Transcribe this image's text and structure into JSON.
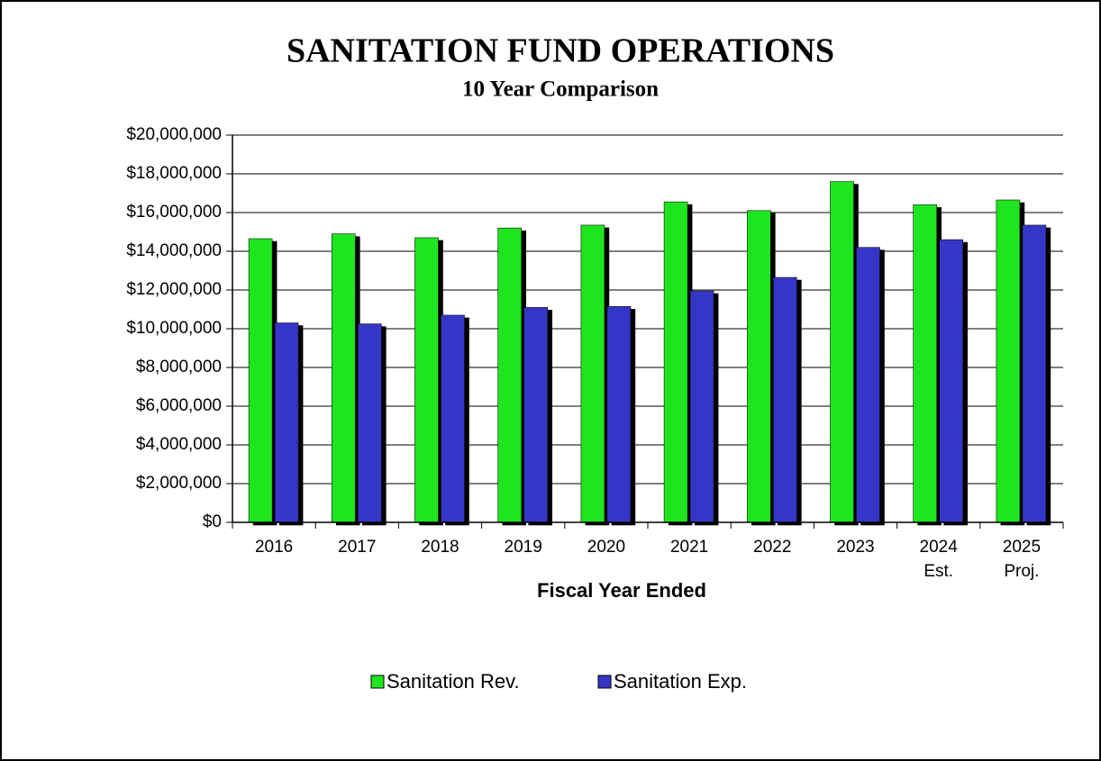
{
  "chart_data": {
    "type": "bar",
    "title": "SANITATION FUND OPERATIONS",
    "subtitle": "10 Year Comparison",
    "x_label": "Fiscal Year Ended",
    "categories": [
      "2016",
      "2017",
      "2018",
      "2019",
      "2020",
      "2021",
      "2022",
      "2023",
      "2024\nEst.",
      "2025\nProj."
    ],
    "series": [
      {
        "name": "Sanitation Rev.",
        "color": "#1ee61e",
        "values": [
          14650000,
          14900000,
          14700000,
          15200000,
          15350000,
          16550000,
          16100000,
          17600000,
          16400000,
          16650000
        ]
      },
      {
        "name": "Sanitation Exp.",
        "color": "#3535c8",
        "values": [
          10300000,
          10250000,
          10700000,
          11100000,
          11150000,
          11950000,
          12650000,
          14200000,
          14600000,
          15350000
        ]
      }
    ],
    "ylim": [
      0,
      20000000
    ],
    "yticks": [
      {
        "value": 0,
        "label": "$0"
      },
      {
        "value": 2000000,
        "label": "$2,000,000"
      },
      {
        "value": 4000000,
        "label": "$4,000,000"
      },
      {
        "value": 6000000,
        "label": "$6,000,000"
      },
      {
        "value": 8000000,
        "label": "$8,000,000"
      },
      {
        "value": 10000000,
        "label": "$10,000,000"
      },
      {
        "value": 12000000,
        "label": "$12,000,000"
      },
      {
        "value": 14000000,
        "label": "$14,000,000"
      },
      {
        "value": 16000000,
        "label": "$16,000,000"
      },
      {
        "value": 18000000,
        "label": "$18,000,000"
      },
      {
        "value": 20000000,
        "label": "$20,000,000"
      }
    ],
    "grid": true,
    "legend": "bottom"
  }
}
